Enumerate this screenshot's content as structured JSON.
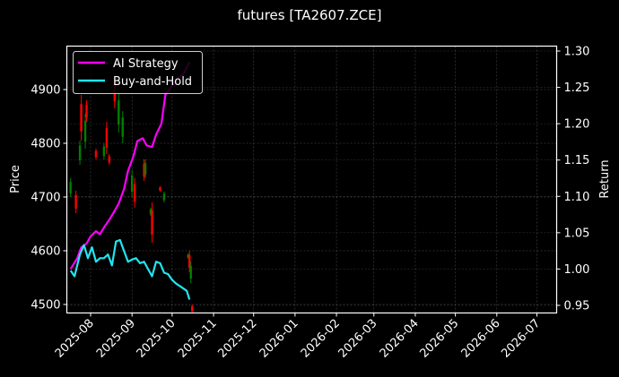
{
  "title": "futures [TA2607.ZCE]",
  "chart_data": {
    "type": "line",
    "title": "futures [TA2607.ZCE]",
    "xlabel": "",
    "ylabel": "Price",
    "ylabel_right": "Return",
    "x_ticks": [
      "2025-08",
      "2025-09",
      "2025-10",
      "2025-11",
      "2025-12",
      "2026-01",
      "2026-02",
      "2026-03",
      "2026-04",
      "2026-05",
      "2026-06",
      "2026-07"
    ],
    "y_ticks_left": [
      4500,
      4600,
      4700,
      4800,
      4900
    ],
    "y_ticks_right": [
      0.95,
      1.0,
      1.05,
      1.1,
      1.15,
      1.2,
      1.25,
      1.3
    ],
    "ylim_left": [
      4483,
      4985
    ],
    "ylim_right": [
      0.94,
      1.305
    ],
    "grid": true,
    "legend_position": "upper left",
    "background": "#000000",
    "candlestick_up_color": "#008000",
    "candlestick_down_color": "#ff0000",
    "series": [
      {
        "name": "AI Strategy",
        "axis": "right",
        "color": "#ff00ff",
        "x": [
          "2025-07-17",
          "2025-07-22",
          "2025-07-25",
          "2025-07-29",
          "2025-08-01",
          "2025-08-05",
          "2025-08-08",
          "2025-08-12",
          "2025-08-15",
          "2025-08-19",
          "2025-08-22",
          "2025-08-26",
          "2025-08-29",
          "2025-09-02",
          "2025-09-05",
          "2025-09-09",
          "2025-09-12",
          "2025-09-16",
          "2025-09-19",
          "2025-09-23",
          "2025-09-26",
          "2025-09-30",
          "2025-10-03",
          "2025-10-10",
          "2025-10-14"
        ],
        "values": [
          1.0,
          1.015,
          1.03,
          1.035,
          1.045,
          1.052,
          1.048,
          1.06,
          1.068,
          1.08,
          1.09,
          1.11,
          1.135,
          1.155,
          1.176,
          1.18,
          1.17,
          1.168,
          1.185,
          1.2,
          1.24,
          1.25,
          1.258,
          1.27,
          1.285
        ]
      },
      {
        "name": "Buy-and-Hold",
        "axis": "right",
        "color": "#22e5f0",
        "x": [
          "2025-07-17",
          "2025-07-20",
          "2025-07-24",
          "2025-07-27",
          "2025-07-30",
          "2025-08-02",
          "2025-08-05",
          "2025-08-08",
          "2025-08-11",
          "2025-08-14",
          "2025-08-17",
          "2025-08-20",
          "2025-08-23",
          "2025-08-26",
          "2025-08-29",
          "2025-09-01",
          "2025-09-04",
          "2025-09-07",
          "2025-09-10",
          "2025-09-13",
          "2025-09-16",
          "2025-09-19",
          "2025-09-22",
          "2025-09-25",
          "2025-09-28",
          "2025-10-01",
          "2025-10-04",
          "2025-10-08",
          "2025-10-12",
          "2025-10-14"
        ],
        "values": [
          0.998,
          0.99,
          1.02,
          1.033,
          1.015,
          1.03,
          1.01,
          1.015,
          1.015,
          1.02,
          1.005,
          1.038,
          1.04,
          1.025,
          1.01,
          1.013,
          1.015,
          1.008,
          1.01,
          1.0,
          0.99,
          1.01,
          1.008,
          0.995,
          0.993,
          0.985,
          0.98,
          0.975,
          0.97,
          0.958
        ]
      }
    ],
    "candlesticks_approx": [
      {
        "x": "2025-07-17",
        "high": 4735,
        "low": 4700,
        "dir": "up"
      },
      {
        "x": "2025-07-21",
        "high": 4712,
        "low": 4670,
        "dir": "down"
      },
      {
        "x": "2025-07-24",
        "high": 4805,
        "low": 4760,
        "dir": "up"
      },
      {
        "x": "2025-07-25",
        "high": 4890,
        "low": 4805,
        "dir": "down"
      },
      {
        "x": "2025-07-28",
        "high": 4855,
        "low": 4790,
        "dir": "up"
      },
      {
        "x": "2025-07-29",
        "high": 4880,
        "low": 4840,
        "dir": "down"
      },
      {
        "x": "2025-08-05",
        "high": 4790,
        "low": 4770,
        "dir": "down"
      },
      {
        "x": "2025-08-11",
        "high": 4800,
        "low": 4770,
        "dir": "up"
      },
      {
        "x": "2025-08-13",
        "high": 4840,
        "low": 4780,
        "dir": "down"
      },
      {
        "x": "2025-08-15",
        "high": 4780,
        "low": 4760,
        "dir": "down"
      },
      {
        "x": "2025-08-19",
        "high": 4930,
        "low": 4865,
        "dir": "down"
      },
      {
        "x": "2025-08-22",
        "high": 4895,
        "low": 4820,
        "dir": "up"
      },
      {
        "x": "2025-08-25",
        "high": 4860,
        "low": 4800,
        "dir": "up"
      },
      {
        "x": "2025-09-01",
        "high": 4750,
        "low": 4700,
        "dir": "up"
      },
      {
        "x": "2025-09-03",
        "high": 4735,
        "low": 4680,
        "dir": "down"
      },
      {
        "x": "2025-09-10",
        "high": 4770,
        "low": 4730,
        "dir": "down"
      },
      {
        "x": "2025-09-11",
        "high": 4770,
        "low": 4735,
        "dir": "up"
      },
      {
        "x": "2025-09-15",
        "high": 4680,
        "low": 4665,
        "dir": "up"
      },
      {
        "x": "2025-09-16",
        "high": 4690,
        "low": 4615,
        "dir": "down"
      },
      {
        "x": "2025-09-22",
        "high": 4720,
        "low": 4710,
        "dir": "down"
      },
      {
        "x": "2025-09-25",
        "high": 4710,
        "low": 4690,
        "dir": "up"
      },
      {
        "x": "2025-10-13",
        "high": 4595,
        "low": 4585,
        "dir": "up"
      },
      {
        "x": "2025-10-14",
        "high": 4600,
        "low": 4560,
        "dir": "down"
      },
      {
        "x": "2025-10-15",
        "high": 4580,
        "low": 4540,
        "dir": "up"
      },
      {
        "x": "2025-10-16",
        "high": 4500,
        "low": 4480,
        "dir": "down"
      }
    ]
  },
  "legend": {
    "items": [
      {
        "label": "AI Strategy",
        "color": "#ff00ff"
      },
      {
        "label": "Buy-and-Hold",
        "color": "#22e5f0"
      }
    ]
  },
  "axes": {
    "left_label": "Price",
    "right_label": "Return",
    "left_ticks": [
      "4900",
      "4800",
      "4700",
      "4600",
      "4500"
    ],
    "right_ticks": [
      "1.30",
      "1.25",
      "1.20",
      "1.15",
      "1.10",
      "1.05",
      "1.00",
      "0.95"
    ],
    "x_ticks": [
      "2025-08",
      "2025-09",
      "2025-10",
      "2025-11",
      "2025-12",
      "2026-01",
      "2026-02",
      "2026-03",
      "2026-04",
      "2026-05",
      "2026-06",
      "2026-07"
    ]
  }
}
